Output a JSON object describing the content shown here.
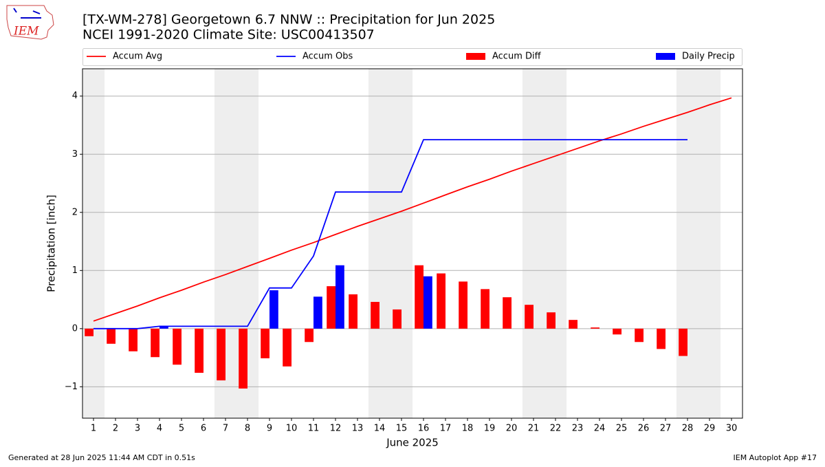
{
  "logo_text": "IEM",
  "footer": {
    "left": "Generated at 28 Jun 2025 11:44 AM CDT in 0.51s",
    "right": "IEM Autoplot App #17"
  },
  "chart_data": {
    "type": "bar",
    "title": "[TX-WM-278] Georgetown 6.7 NNW :: Precipitation for Jun 2025",
    "subtitle": "NCEI 1991-2020 Climate Site: USC00413507",
    "xlabel": "June 2025",
    "ylabel": "Precipitation [inch]",
    "x": [
      1,
      2,
      3,
      4,
      5,
      6,
      7,
      8,
      9,
      10,
      11,
      12,
      13,
      14,
      15,
      16,
      17,
      18,
      19,
      20,
      21,
      22,
      23,
      24,
      25,
      26,
      27,
      28,
      29,
      30
    ],
    "xlim": [
      0.5,
      30.5
    ],
    "xticks": [
      1,
      2,
      3,
      4,
      5,
      6,
      7,
      8,
      9,
      10,
      11,
      12,
      13,
      14,
      15,
      16,
      17,
      18,
      19,
      20,
      21,
      22,
      23,
      24,
      25,
      26,
      27,
      28,
      29,
      30
    ],
    "ylim": [
      -1.54,
      4.47
    ],
    "yticks": [
      {
        "value": -1,
        "label": "−1"
      },
      0,
      1,
      2,
      3,
      4
    ],
    "grid": true,
    "legend": "top",
    "shaded_days": [
      1,
      7,
      8,
      14,
      15,
      21,
      22,
      28,
      29
    ],
    "series": [
      {
        "name": "Accum Avg",
        "color": "#ff0000",
        "mark": "line",
        "values": [
          0.13,
          0.26,
          0.39,
          0.53,
          0.66,
          0.8,
          0.93,
          1.07,
          1.21,
          1.35,
          1.48,
          1.62,
          1.76,
          1.89,
          2.02,
          2.16,
          2.3,
          2.44,
          2.57,
          2.71,
          2.84,
          2.97,
          3.1,
          3.23,
          3.35,
          3.48,
          3.6,
          3.72,
          3.85,
          3.97
        ]
      },
      {
        "name": "Accum Obs",
        "color": "#0000ff",
        "mark": "line",
        "values": [
          0,
          0,
          0,
          0.04,
          0.04,
          0.04,
          0.04,
          0.04,
          0.7,
          0.7,
          1.25,
          2.35,
          2.35,
          2.35,
          2.35,
          3.25,
          3.25,
          3.25,
          3.25,
          3.25,
          3.25,
          3.25,
          3.25,
          3.25,
          3.25,
          3.25,
          3.25,
          3.25,
          null,
          null
        ]
      },
      {
        "name": "Accum Diff",
        "color": "#ff0000",
        "mark": "bar",
        "offset": -0.2,
        "values": [
          -0.13,
          -0.26,
          -0.39,
          -0.49,
          -0.62,
          -0.76,
          -0.89,
          -1.03,
          -0.51,
          -0.65,
          -0.23,
          0.73,
          0.59,
          0.46,
          0.33,
          1.09,
          0.95,
          0.81,
          0.68,
          0.54,
          0.41,
          0.28,
          0.15,
          0.02,
          -0.1,
          -0.23,
          -0.35,
          -0.47,
          null,
          null
        ]
      },
      {
        "name": "Daily Precip",
        "color": "#0000ff",
        "mark": "bar",
        "offset": 0.2,
        "values": [
          0,
          0,
          0,
          0.04,
          0,
          0,
          0,
          0,
          0.66,
          0,
          0.55,
          1.09,
          0,
          0,
          0,
          0.9,
          0,
          0,
          0,
          0,
          0,
          0,
          0,
          0,
          0,
          0,
          0,
          0,
          null,
          null
        ]
      }
    ]
  }
}
